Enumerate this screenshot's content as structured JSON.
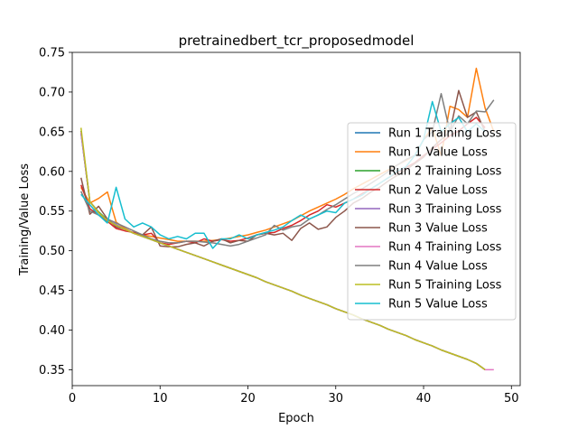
{
  "chart_data": {
    "type": "line",
    "title": "pretrainedbert_tcr_proposedmodel",
    "xlabel": "Epoch",
    "ylabel": "Training/Value Loss",
    "xlim": [
      0,
      51
    ],
    "ylim": [
      0.33,
      0.75
    ],
    "xticks": [
      0,
      10,
      20,
      30,
      40,
      50
    ],
    "xtick_labels": [
      "0",
      "10",
      "20",
      "30",
      "40",
      "50"
    ],
    "yticks": [
      0.35,
      0.4,
      0.45,
      0.5,
      0.55,
      0.6,
      0.65,
      0.7,
      0.75
    ],
    "ytick_labels": [
      "0.35",
      "0.40",
      "0.45",
      "0.50",
      "0.55",
      "0.60",
      "0.65",
      "0.70",
      "0.75"
    ],
    "grid": false,
    "legend_position": "center-right",
    "series": [
      {
        "name": "Run 1 Training Loss",
        "color": "#1f77b4",
        "x": [
          1,
          2,
          3,
          4,
          5,
          6,
          7,
          8,
          9,
          10,
          11,
          12,
          13,
          14,
          15,
          16,
          17,
          18,
          19,
          20,
          21,
          22,
          23,
          24,
          25,
          26,
          27,
          28,
          29,
          30,
          31,
          32,
          33,
          34,
          35,
          36,
          37,
          38,
          39,
          40,
          41,
          42,
          43,
          44,
          45,
          46,
          47
        ],
        "y": [
          0.648,
          0.562,
          0.548,
          0.538,
          0.532,
          0.527,
          0.522,
          0.518,
          0.514,
          0.51,
          0.506,
          0.502,
          0.498,
          0.494,
          0.49,
          0.486,
          0.482,
          0.478,
          0.474,
          0.47,
          0.466,
          0.461,
          0.457,
          0.453,
          0.449,
          0.444,
          0.44,
          0.436,
          0.432,
          0.427,
          0.423,
          0.419,
          0.414,
          0.41,
          0.406,
          0.401,
          0.397,
          0.393,
          0.388,
          0.384,
          0.38,
          0.375,
          0.371,
          0.367,
          0.363,
          0.358,
          0.35
        ]
      },
      {
        "name": "Run 1 Value Loss",
        "color": "#ff7f0e",
        "x": [
          1,
          2,
          3,
          4,
          5,
          6,
          7,
          8,
          9,
          10,
          11,
          12,
          13,
          14,
          15,
          16,
          17,
          18,
          19,
          20,
          21,
          22,
          23,
          24,
          25,
          26,
          27,
          28,
          29,
          30,
          31,
          32,
          33,
          34,
          35,
          36,
          37,
          38,
          39,
          40,
          41,
          42,
          43,
          44,
          45,
          46,
          47,
          48
        ],
        "y": [
          0.58,
          0.56,
          0.566,
          0.574,
          0.536,
          0.528,
          0.522,
          0.52,
          0.518,
          0.516,
          0.514,
          0.512,
          0.512,
          0.512,
          0.512,
          0.513,
          0.514,
          0.516,
          0.518,
          0.52,
          0.523,
          0.526,
          0.53,
          0.534,
          0.538,
          0.544,
          0.55,
          0.555,
          0.56,
          0.565,
          0.571,
          0.578,
          0.584,
          0.59,
          0.596,
          0.602,
          0.608,
          0.614,
          0.62,
          0.64,
          0.655,
          0.62,
          0.682,
          0.678,
          0.668,
          0.73,
          0.68,
          0.65
        ]
      },
      {
        "name": "Run 2 Training Loss",
        "color": "#2ca02c",
        "x": [
          1,
          2,
          3,
          4,
          5,
          6,
          7,
          8,
          9,
          10,
          11,
          12,
          13,
          14,
          15,
          16,
          17,
          18,
          19,
          20,
          21,
          22,
          23,
          24,
          25,
          26,
          27,
          28,
          29,
          30,
          31,
          32,
          33,
          34,
          35,
          36,
          37,
          38,
          39,
          40,
          41,
          42,
          43,
          44,
          45,
          46,
          47
        ],
        "y": [
          0.651,
          0.562,
          0.549,
          0.539,
          0.532,
          0.527,
          0.522,
          0.518,
          0.514,
          0.51,
          0.506,
          0.502,
          0.498,
          0.494,
          0.49,
          0.486,
          0.482,
          0.478,
          0.474,
          0.47,
          0.466,
          0.461,
          0.457,
          0.453,
          0.449,
          0.444,
          0.44,
          0.436,
          0.432,
          0.427,
          0.423,
          0.419,
          0.414,
          0.41,
          0.406,
          0.401,
          0.397,
          0.393,
          0.388,
          0.384,
          0.38,
          0.375,
          0.371,
          0.367,
          0.363,
          0.358,
          0.35
        ]
      },
      {
        "name": "Run 2 Value Loss",
        "color": "#d62728",
        "x": [
          1,
          2,
          3,
          4,
          5,
          6,
          7,
          8,
          9,
          10,
          11,
          12,
          13,
          14,
          15,
          16,
          17,
          18,
          19,
          20,
          21,
          22,
          23,
          24,
          25,
          26,
          27,
          28,
          29,
          30,
          31,
          32,
          33,
          34,
          35,
          36,
          37,
          38,
          39,
          40,
          41,
          42,
          43,
          44,
          45,
          46,
          47
        ],
        "y": [
          0.583,
          0.553,
          0.545,
          0.537,
          0.528,
          0.525,
          0.523,
          0.52,
          0.522,
          0.51,
          0.508,
          0.51,
          0.512,
          0.51,
          0.515,
          0.512,
          0.514,
          0.512,
          0.513,
          0.516,
          0.52,
          0.522,
          0.523,
          0.528,
          0.532,
          0.538,
          0.545,
          0.55,
          0.558,
          0.555,
          0.56,
          0.565,
          0.572,
          0.578,
          0.585,
          0.592,
          0.598,
          0.605,
          0.611,
          0.62,
          0.628,
          0.636,
          0.645,
          0.651,
          0.66,
          0.668,
          0.655
        ]
      },
      {
        "name": "Run 3 Training Loss",
        "color": "#9467bd",
        "x": [
          1,
          2,
          3,
          4,
          5,
          6,
          7,
          8,
          9,
          10,
          11,
          12,
          13,
          14,
          15,
          16,
          17,
          18,
          19,
          20,
          21,
          22,
          23,
          24,
          25,
          26,
          27,
          28,
          29,
          30,
          31,
          32,
          33,
          34,
          35,
          36,
          37,
          38,
          39,
          40,
          41,
          42,
          43,
          44,
          45,
          46,
          47
        ],
        "y": [
          0.649,
          0.562,
          0.548,
          0.538,
          0.533,
          0.527,
          0.522,
          0.518,
          0.514,
          0.51,
          0.506,
          0.502,
          0.498,
          0.494,
          0.49,
          0.486,
          0.482,
          0.478,
          0.474,
          0.47,
          0.466,
          0.461,
          0.457,
          0.453,
          0.449,
          0.444,
          0.44,
          0.436,
          0.432,
          0.427,
          0.423,
          0.419,
          0.414,
          0.41,
          0.406,
          0.401,
          0.397,
          0.393,
          0.388,
          0.384,
          0.38,
          0.375,
          0.371,
          0.367,
          0.363,
          0.358,
          0.35
        ]
      },
      {
        "name": "Run 3 Value Loss",
        "color": "#8c564b",
        "x": [
          1,
          2,
          3,
          4,
          5,
          6,
          7,
          8,
          9,
          10,
          11,
          12,
          13,
          14,
          15,
          16,
          17,
          18,
          19,
          20,
          21,
          22,
          23,
          24,
          25,
          26,
          27,
          28,
          29,
          30,
          31,
          32,
          33,
          34,
          35,
          36,
          37,
          38,
          39,
          40,
          41,
          42,
          43,
          44,
          45,
          46,
          47
        ],
        "y": [
          0.592,
          0.546,
          0.556,
          0.54,
          0.53,
          0.527,
          0.522,
          0.52,
          0.53,
          0.506,
          0.505,
          0.505,
          0.508,
          0.51,
          0.506,
          0.512,
          0.515,
          0.51,
          0.513,
          0.512,
          0.52,
          0.522,
          0.52,
          0.522,
          0.513,
          0.528,
          0.535,
          0.527,
          0.53,
          0.542,
          0.55,
          0.56,
          0.566,
          0.574,
          0.58,
          0.588,
          0.595,
          0.602,
          0.61,
          0.618,
          0.63,
          0.64,
          0.65,
          0.702,
          0.668,
          0.675,
          0.65
        ]
      },
      {
        "name": "Run 4 Training Loss",
        "color": "#e377c2",
        "x": [
          1,
          2,
          3,
          4,
          5,
          6,
          7,
          8,
          9,
          10,
          11,
          12,
          13,
          14,
          15,
          16,
          17,
          18,
          19,
          20,
          21,
          22,
          23,
          24,
          25,
          26,
          27,
          28,
          29,
          30,
          31,
          32,
          33,
          34,
          35,
          36,
          37,
          38,
          39,
          40,
          41,
          42,
          43,
          44,
          45,
          46,
          47,
          48
        ],
        "y": [
          0.65,
          0.562,
          0.548,
          0.538,
          0.532,
          0.527,
          0.522,
          0.518,
          0.514,
          0.51,
          0.506,
          0.502,
          0.498,
          0.494,
          0.49,
          0.486,
          0.482,
          0.478,
          0.474,
          0.47,
          0.466,
          0.461,
          0.457,
          0.453,
          0.449,
          0.444,
          0.44,
          0.436,
          0.432,
          0.427,
          0.423,
          0.419,
          0.414,
          0.41,
          0.406,
          0.401,
          0.397,
          0.393,
          0.388,
          0.384,
          0.38,
          0.375,
          0.371,
          0.367,
          0.363,
          0.358,
          0.35,
          0.35
        ]
      },
      {
        "name": "Run 4 Value Loss",
        "color": "#7f7f7f",
        "x": [
          1,
          2,
          3,
          4,
          5,
          6,
          7,
          8,
          9,
          10,
          11,
          12,
          13,
          14,
          15,
          16,
          17,
          18,
          19,
          20,
          21,
          22,
          23,
          24,
          25,
          26,
          27,
          28,
          29,
          30,
          31,
          32,
          33,
          34,
          35,
          36,
          37,
          38,
          39,
          40,
          41,
          42,
          43,
          44,
          45,
          46,
          47,
          48
        ],
        "y": [
          0.575,
          0.55,
          0.545,
          0.54,
          0.535,
          0.53,
          0.525,
          0.52,
          0.515,
          0.512,
          0.51,
          0.51,
          0.512,
          0.512,
          0.511,
          0.51,
          0.508,
          0.506,
          0.508,
          0.512,
          0.516,
          0.52,
          0.532,
          0.526,
          0.53,
          0.532,
          0.54,
          0.545,
          0.552,
          0.558,
          0.565,
          0.572,
          0.578,
          0.585,
          0.592,
          0.6,
          0.608,
          0.615,
          0.62,
          0.64,
          0.65,
          0.698,
          0.65,
          0.67,
          0.66,
          0.676,
          0.675,
          0.69
        ]
      },
      {
        "name": "Run 5 Training Loss",
        "color": "#bcbd22",
        "x": [
          1,
          2,
          3,
          4,
          5,
          6,
          7,
          8,
          9,
          10,
          11,
          12,
          13,
          14,
          15,
          16,
          17,
          18,
          19,
          20,
          21,
          22,
          23,
          24,
          25,
          26,
          27,
          28,
          29,
          30,
          31,
          32,
          33,
          34,
          35,
          36,
          37,
          38,
          39,
          40,
          41,
          42,
          43,
          44,
          45,
          46,
          47
        ],
        "y": [
          0.655,
          0.562,
          0.548,
          0.538,
          0.532,
          0.527,
          0.522,
          0.518,
          0.514,
          0.51,
          0.506,
          0.502,
          0.498,
          0.494,
          0.49,
          0.486,
          0.482,
          0.478,
          0.474,
          0.47,
          0.466,
          0.461,
          0.457,
          0.453,
          0.449,
          0.444,
          0.44,
          0.436,
          0.432,
          0.427,
          0.423,
          0.419,
          0.414,
          0.41,
          0.406,
          0.401,
          0.397,
          0.393,
          0.388,
          0.384,
          0.38,
          0.375,
          0.371,
          0.367,
          0.363,
          0.358,
          0.35
        ]
      },
      {
        "name": "Run 5 Value Loss",
        "color": "#17becf",
        "x": [
          1,
          2,
          3,
          4,
          5,
          6,
          7,
          8,
          9,
          10,
          11,
          12,
          13,
          14,
          15,
          16,
          17,
          18,
          19,
          20,
          21,
          22,
          23,
          24,
          25,
          26,
          27,
          28,
          29,
          30,
          31,
          32,
          33,
          34,
          35,
          36,
          37,
          38,
          39,
          40,
          41,
          42,
          43,
          44,
          45,
          46,
          47
        ],
        "y": [
          0.571,
          0.558,
          0.545,
          0.535,
          0.58,
          0.54,
          0.53,
          0.535,
          0.53,
          0.52,
          0.515,
          0.518,
          0.515,
          0.522,
          0.522,
          0.503,
          0.515,
          0.515,
          0.52,
          0.515,
          0.52,
          0.523,
          0.526,
          0.53,
          0.538,
          0.545,
          0.54,
          0.545,
          0.55,
          0.548,
          0.56,
          0.565,
          0.57,
          0.578,
          0.585,
          0.592,
          0.6,
          0.606,
          0.62,
          0.64,
          0.688,
          0.65,
          0.66,
          0.668,
          0.65,
          0.66,
          0.65
        ]
      }
    ]
  }
}
